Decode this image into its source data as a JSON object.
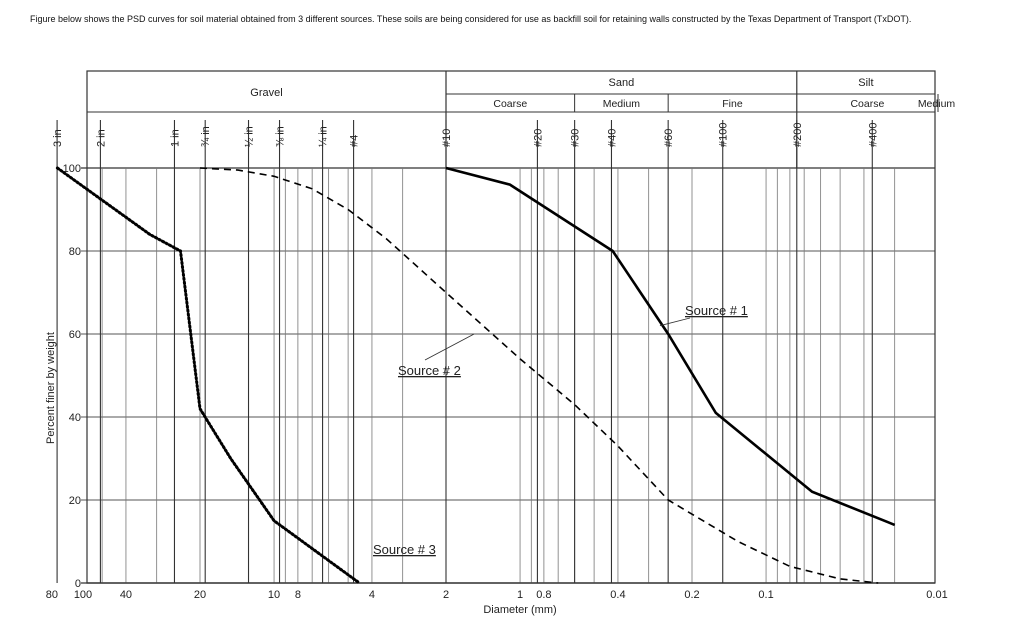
{
  "intro_text": "Figure below shows the PSD curves for soil material obtained from 3 different sources.  These soils are being considered for use as backfill soil for retaining walls constructed by the Texas Department of Transport (TxDOT).",
  "chart_data": {
    "type": "line",
    "title": "",
    "xlabel": "Diameter (mm)",
    "ylabel": "Percent finer by weight",
    "x_scale": "log",
    "x_reversed": true,
    "xlim": [
      100,
      0.01
    ],
    "ylim": [
      0,
      100
    ],
    "x_tick_labels": [
      {
        "value": 100,
        "label": "100"
      },
      {
        "value": 80,
        "label": "80"
      },
      {
        "value": 40,
        "label": "40"
      },
      {
        "value": 20,
        "label": "20"
      },
      {
        "value": 10,
        "label": "10"
      },
      {
        "value": 8,
        "label": "8"
      },
      {
        "value": 4,
        "label": "4"
      },
      {
        "value": 2,
        "label": "2"
      },
      {
        "value": 1,
        "label": "1"
      },
      {
        "value": 0.8,
        "label": "0.8"
      },
      {
        "value": 0.4,
        "label": "0.4"
      },
      {
        "value": 0.2,
        "label": "0.2"
      },
      {
        "value": 0.1,
        "label": "0.1"
      },
      {
        "value": 0.01,
        "label": "0.01"
      }
    ],
    "y_ticks": [
      0,
      20,
      40,
      60,
      80,
      100
    ],
    "sieves": [
      {
        "label": "3 in",
        "size": 76.2
      },
      {
        "label": "2 in",
        "size": 50.8
      },
      {
        "label": "1 in",
        "size": 25.4
      },
      {
        "label": "¾ in",
        "size": 19.05
      },
      {
        "label": "½ in",
        "size": 12.7
      },
      {
        "label": "⅜ in",
        "size": 9.5
      },
      {
        "label": "¼ in",
        "size": 6.35
      },
      {
        "label": "#4",
        "size": 4.75
      },
      {
        "label": "#10",
        "size": 2.0
      },
      {
        "label": "#20",
        "size": 0.85
      },
      {
        "label": "#30",
        "size": 0.6
      },
      {
        "label": "#40",
        "size": 0.425
      },
      {
        "label": "#60",
        "size": 0.25
      },
      {
        "label": "#100",
        "size": 0.15
      },
      {
        "label": "#200",
        "size": 0.075
      },
      {
        "label": "#400",
        "size": 0.037
      }
    ],
    "soil_classes": [
      {
        "group": "Gravel",
        "subclasses": []
      },
      {
        "group": "Sand",
        "subclasses": [
          "Coarse",
          "Medium",
          "Fine"
        ]
      },
      {
        "group": "Silt",
        "subclasses": [
          "Coarse",
          "Medium"
        ]
      }
    ],
    "series": [
      {
        "name": "Source # 1",
        "style": "solid",
        "points": [
          [
            2.0,
            100
          ],
          [
            1.1,
            96
          ],
          [
            0.42,
            80
          ],
          [
            0.25,
            60
          ],
          [
            0.16,
            41
          ],
          [
            0.065,
            22
          ],
          [
            0.03,
            14
          ]
        ]
      },
      {
        "name": "Source # 2",
        "style": "dashed",
        "points": [
          [
            20,
            100
          ],
          [
            14,
            99.5
          ],
          [
            10,
            98
          ],
          [
            7,
            95
          ],
          [
            5,
            90
          ],
          [
            3.5,
            83
          ],
          [
            2.0,
            70
          ],
          [
            1.0,
            54
          ],
          [
            0.6,
            43
          ],
          [
            0.4,
            33
          ],
          [
            0.25,
            20
          ],
          [
            0.13,
            10
          ],
          [
            0.08,
            4
          ],
          [
            0.05,
            1
          ],
          [
            0.035,
            0
          ]
        ]
      },
      {
        "name": "Source # 3",
        "style": "dotted",
        "points": [
          [
            76,
            100
          ],
          [
            32,
            84
          ],
          [
            24,
            80
          ],
          [
            20,
            42
          ],
          [
            15,
            30
          ],
          [
            10,
            15
          ],
          [
            4.5,
            0
          ]
        ]
      }
    ],
    "annotations": [
      {
        "text": "Source # 1",
        "target": [
          0.27,
          62
        ]
      },
      {
        "text": "Source # 2",
        "target": [
          1.4,
          60
        ]
      },
      {
        "text": "Source # 3",
        "target": [
          4.6,
          0
        ]
      }
    ],
    "grid": true,
    "legend": "none"
  }
}
